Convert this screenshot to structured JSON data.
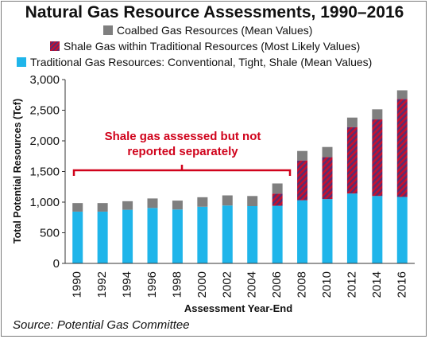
{
  "title": "Natural Gas Resource Assessments, 1990–2016",
  "legend": [
    {
      "label": "Coalbed Gas Resources (Mean Values)",
      "color": "#7f7f7f"
    },
    {
      "label": "Shale Gas within Traditional Resources (Most Likely Values)",
      "color": "#c8102e"
    },
    {
      "label": "Traditional Gas Resources: Conventional, Tight, Shale (Mean Values)",
      "color": "#1fb5ea"
    }
  ],
  "source": "Source: Potential Gas Committee",
  "annotation": {
    "line1": "Shale gas assessed but not",
    "line2": "reported separately"
  },
  "chart_data": {
    "type": "bar",
    "stacked": true,
    "title": "Natural Gas Resource Assessments, 1990–2016",
    "xlabel": "Assessment Year-End",
    "ylabel": "Total Potential Resources (Tcf)",
    "ylim": [
      0,
      3000
    ],
    "yticks": [
      0,
      500,
      1000,
      1500,
      2000,
      2500,
      3000
    ],
    "ytick_labels": [
      "0",
      "500",
      "1,000",
      "1,500",
      "2,000",
      "2,500",
      "3,000"
    ],
    "categories": [
      "1990",
      "1992",
      "1994",
      "1996",
      "1998",
      "2000",
      "2002",
      "2004",
      "2006",
      "2008",
      "2010",
      "2012",
      "2014",
      "2016"
    ],
    "series": [
      {
        "name": "Traditional Gas Resources: Conventional, Tight, Shale (Mean Values)",
        "color": "#1fb5ea",
        "values": [
          845,
          845,
          875,
          905,
          880,
          925,
          945,
          935,
          940,
          1030,
          1050,
          1140,
          1100,
          1085
        ]
      },
      {
        "name": "Shale Gas within Traditional Resources (Most Likely Values)",
        "color": "#c8102e",
        "values": [
          0,
          0,
          0,
          0,
          0,
          0,
          0,
          0,
          200,
          650,
          685,
          1085,
          1250,
          1600
        ]
      },
      {
        "name": "Coalbed Gas Resources (Mean Values)",
        "color": "#7f7f7f",
        "values": [
          140,
          140,
          140,
          155,
          145,
          155,
          165,
          165,
          165,
          155,
          165,
          155,
          165,
          140
        ]
      }
    ],
    "grid": false,
    "legend_position": "top"
  }
}
